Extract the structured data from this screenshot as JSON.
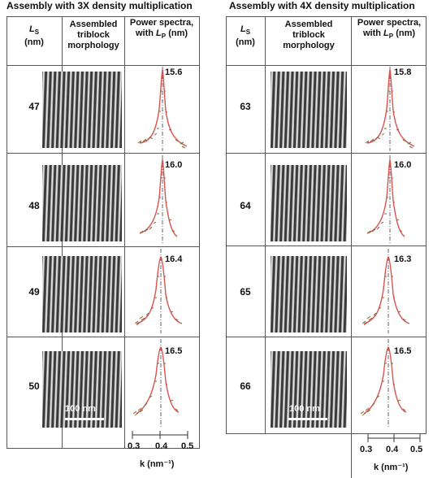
{
  "panels": [
    {
      "title": "Assembly with 3X density multiplication",
      "headers": {
        "ls": "L",
        "ls_sub": "S",
        "ls_unit": "(nm)",
        "morph": "Assembled triblock morphology",
        "spec": "Power spectra, with",
        "spec_lp": "L",
        "spec_lp_sub": "P",
        "spec_unit": "(nm)"
      },
      "rows": [
        {
          "ls": "47",
          "lp": "15.6"
        },
        {
          "ls": "48",
          "lp": "16.0"
        },
        {
          "ls": "49",
          "lp": "16.4"
        },
        {
          "ls": "50",
          "lp": "16.5"
        }
      ],
      "scale_label": "100 nm",
      "axis": {
        "ticks": [
          "0.3",
          "0.4",
          "0.5"
        ],
        "label": "k (nm⁻¹)"
      }
    },
    {
      "title": "Assembly with 4X density multiplication",
      "headers": {
        "ls": "L",
        "ls_sub": "S",
        "ls_unit": "(nm)",
        "morph": "Assembled triblock morphology",
        "spec": "Power spectra, with",
        "spec_lp": "L",
        "spec_lp_sub": "P",
        "spec_unit": "(nm)"
      },
      "rows": [
        {
          "ls": "63",
          "lp": "15.8"
        },
        {
          "ls": "64",
          "lp": "16.0"
        },
        {
          "ls": "65",
          "lp": "16.3"
        },
        {
          "ls": "66",
          "lp": "16.5"
        }
      ],
      "scale_label": "100 nm",
      "axis": {
        "ticks": [
          "0.3",
          "0.4",
          "0.5"
        ],
        "label": "k (nm⁻¹)"
      }
    }
  ],
  "colors": {
    "curve": "#d9534f",
    "markers": "#7a6a3a",
    "dashed": "#666666"
  }
}
